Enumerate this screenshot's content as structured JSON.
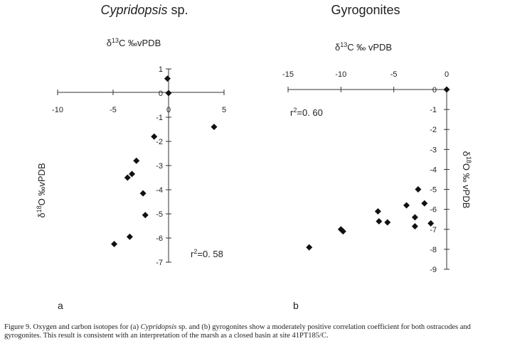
{
  "chart_data": [
    {
      "type": "scatter",
      "panel_letter": "a",
      "title": "Cypridopsis",
      "title_suffix": " sp.",
      "xlabel": "δ13C ‰vPDB",
      "ylabel": "δ18O ‰vPDB",
      "xlim": [
        -10,
        5
      ],
      "ylim": [
        -7,
        1
      ],
      "xticks": [
        -10,
        -5,
        0,
        5
      ],
      "yticks": [
        1,
        0,
        -1,
        -2,
        -3,
        -4,
        -5,
        -6,
        -7
      ],
      "annotation": "r2=0. 58",
      "points": [
        {
          "x": -0.1,
          "y": 0.6
        },
        {
          "x": 0.0,
          "y": 0.0
        },
        {
          "x": 4.1,
          "y": -1.4
        },
        {
          "x": -1.3,
          "y": -1.8
        },
        {
          "x": -2.9,
          "y": -2.8
        },
        {
          "x": -3.3,
          "y": -3.35
        },
        {
          "x": -3.7,
          "y": -3.5
        },
        {
          "x": -2.3,
          "y": -4.15
        },
        {
          "x": -2.1,
          "y": -5.05
        },
        {
          "x": -3.5,
          "y": -5.95
        },
        {
          "x": -4.9,
          "y": -6.25
        }
      ]
    },
    {
      "type": "scatter",
      "panel_letter": "b",
      "title": "Gyrogonites",
      "xlabel": "δ13C ‰ vPDB",
      "ylabel": "δ18O ‰ vPDB",
      "xlim": [
        -15,
        0
      ],
      "ylim": [
        -9,
        0
      ],
      "xticks": [
        -15,
        -10,
        -5,
        0
      ],
      "yticks": [
        0,
        -1,
        -2,
        -3,
        -4,
        -5,
        -6,
        -7,
        -8,
        -9
      ],
      "annotation": "r2=0. 60",
      "points": [
        {
          "x": 0.0,
          "y": 0.0
        },
        {
          "x": -13.0,
          "y": -7.9
        },
        {
          "x": -10.0,
          "y": -7.0
        },
        {
          "x": -9.8,
          "y": -7.1
        },
        {
          "x": -6.5,
          "y": -6.1
        },
        {
          "x": -6.4,
          "y": -6.6
        },
        {
          "x": -5.6,
          "y": -6.65
        },
        {
          "x": -3.8,
          "y": -5.8
        },
        {
          "x": -3.0,
          "y": -6.4
        },
        {
          "x": -3.0,
          "y": -6.85
        },
        {
          "x": -2.7,
          "y": -5.0
        },
        {
          "x": -2.1,
          "y": -5.7
        },
        {
          "x": -1.5,
          "y": -6.7
        }
      ]
    }
  ],
  "caption": {
    "prefix": "Figure 9. Oxygen and carbon isotopes for (a) ",
    "italic": "Cypridopsis",
    "rest": " sp. and (b) gyrogonites show a moderately positive correlation coefficient for both ostracodes and gyrogonites. This result is consistent with an interpretation of the marsh as a closed basin at site 41PT185/C."
  }
}
